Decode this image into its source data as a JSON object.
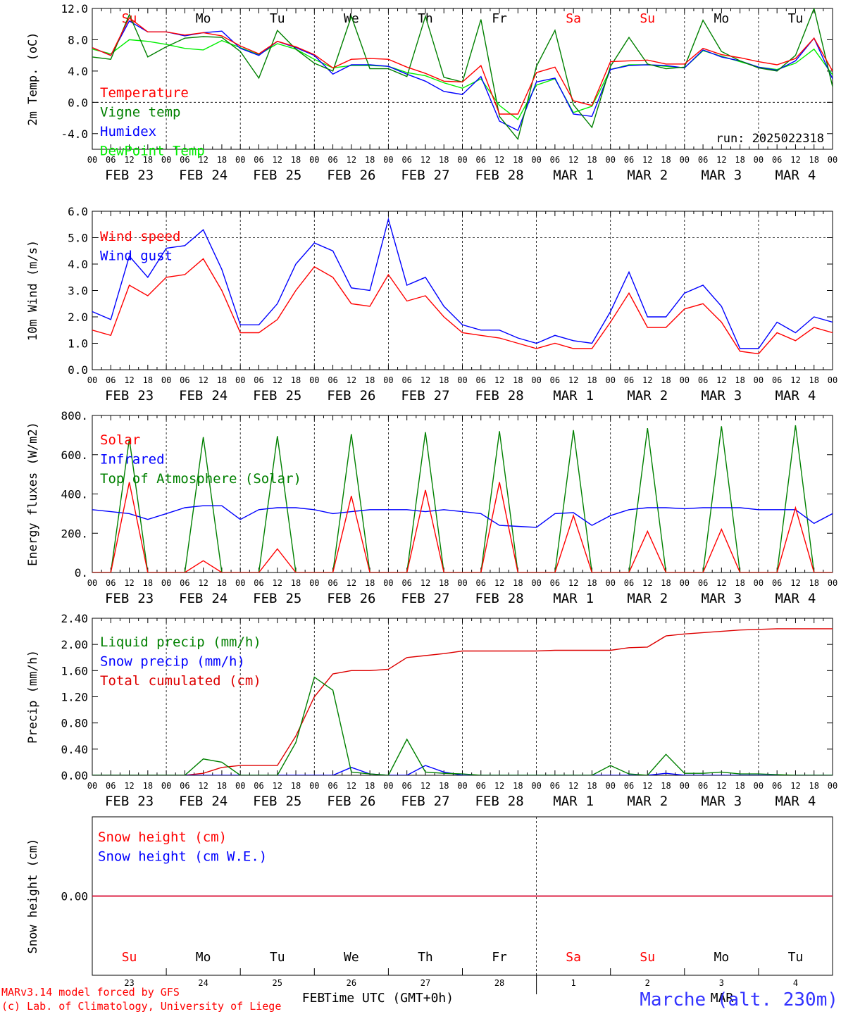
{
  "time_axis": {
    "hour_ticks": [
      "00",
      "06",
      "12",
      "18"
    ],
    "end_tick": "00",
    "dates": [
      [
        "FEB",
        "23"
      ],
      [
        "FEB",
        "24"
      ],
      [
        "FEB",
        "25"
      ],
      [
        "FEB",
        "26"
      ],
      [
        "FEB",
        "27"
      ],
      [
        "FEB",
        "28"
      ],
      [
        "MAR",
        "1"
      ],
      [
        "MAR",
        "2"
      ],
      [
        "MAR",
        "3"
      ],
      [
        "MAR",
        "4"
      ]
    ],
    "weekdays": [
      "Su",
      "Mo",
      "Tu",
      "We",
      "Th",
      "Fr",
      "Sa",
      "Su",
      "Mo",
      "Tu"
    ],
    "weekend_color": "#ff0000",
    "weekday_color": "#000000",
    "day_numbers": [
      "23",
      "24",
      "25",
      "26",
      "27",
      "28",
      "1",
      "2",
      "3",
      "4"
    ],
    "month_label_feb": "FEB",
    "month_label_mar": "MAR",
    "xlabel": "Time UTC (GMT+0h)"
  },
  "footer": {
    "credit_line1": "MARv3.14 model forced by GFS",
    "credit_line2": "(c) Lab. of Climatology, University of Liege",
    "station": "Marche (alt. 230m)",
    "credit_color": "#ff0000",
    "station_color": "#3333ff"
  },
  "chart_data": [
    {
      "id": "temperature",
      "type": "line",
      "ylabel": "2m Temp. (oC)",
      "ylim": [
        -6,
        12
      ],
      "yticks": [
        "12.0",
        "8.0",
        "4.0",
        "0.0",
        "-4.0"
      ],
      "ytick_values": [
        12,
        8,
        4,
        0,
        -4
      ],
      "run_label": "run: 2025022318",
      "x_hours": [
        0,
        6,
        12,
        18,
        24,
        30,
        36,
        42,
        48,
        54,
        60,
        66,
        72,
        78,
        84,
        90,
        96,
        102,
        108,
        114,
        120,
        126,
        132,
        138,
        144,
        150,
        156,
        162,
        168,
        174,
        180,
        186,
        192,
        198,
        204,
        210,
        216,
        222,
        228,
        234,
        240
      ],
      "series": [
        {
          "name": "Temperature",
          "color": "#ff0000",
          "values": [
            7.0,
            6.0,
            10.8,
            9.0,
            9.0,
            8.6,
            8.9,
            8.5,
            7.2,
            6.2,
            7.8,
            7.1,
            6.1,
            4.4,
            5.5,
            5.6,
            5.5,
            4.5,
            3.7,
            2.7,
            2.6,
            4.7,
            -1.5,
            -1.5,
            3.8,
            4.5,
            0.2,
            -0.4,
            5.2,
            5.3,
            5.4,
            4.9,
            4.9,
            6.9,
            6.1,
            5.7,
            5.2,
            4.8,
            5.6,
            8.2,
            4.0
          ]
        },
        {
          "name": "Vigne temp",
          "color": "#008000",
          "values": [
            5.8,
            5.5,
            11.2,
            5.8,
            7.1,
            8.2,
            8.4,
            8.3,
            6.5,
            3.1,
            9.2,
            6.8,
            5.0,
            4.0,
            11.0,
            4.3,
            4.3,
            3.3,
            11.0,
            3.2,
            2.6,
            10.6,
            -1.8,
            -4.7,
            4.6,
            9.2,
            -0.3,
            -3.2,
            4.6,
            8.3,
            4.9,
            4.3,
            4.5,
            10.5,
            6.5,
            5.3,
            4.4,
            4.0,
            6.0,
            12.0,
            2.0
          ]
        },
        {
          "name": "Humidex",
          "color": "#0000ff",
          "values": [
            7.0,
            6.0,
            10.4,
            9.0,
            9.0,
            8.5,
            8.9,
            9.1,
            6.9,
            6.0,
            7.8,
            7.0,
            6.0,
            3.6,
            4.8,
            4.8,
            4.6,
            3.6,
            2.7,
            1.4,
            1.0,
            3.3,
            -2.4,
            -3.6,
            2.6,
            3.1,
            -1.5,
            -1.8,
            4.2,
            4.7,
            4.8,
            4.7,
            4.4,
            6.7,
            5.8,
            5.3,
            4.5,
            4.1,
            5.3,
            8.2,
            3.0
          ]
        },
        {
          "name": "DewPoint Temp",
          "color": "#00ee00",
          "values": [
            6.8,
            6.2,
            8.0,
            7.8,
            7.4,
            6.9,
            6.7,
            7.9,
            7.0,
            6.1,
            7.5,
            6.8,
            5.5,
            4.4,
            4.7,
            4.7,
            4.6,
            3.8,
            3.4,
            2.5,
            1.8,
            3.0,
            -0.4,
            -2.2,
            2.2,
            3.0,
            -1.3,
            -0.5,
            4.2,
            4.8,
            4.8,
            4.6,
            4.4,
            6.6,
            5.9,
            5.2,
            4.5,
            4.2,
            5.0,
            6.8,
            3.5
          ]
        }
      ]
    },
    {
      "id": "wind",
      "type": "line",
      "ylabel": "10m Wind (m/s)",
      "ylim": [
        0,
        6
      ],
      "yticks": [
        "6.0",
        "5.0",
        "4.0",
        "3.0",
        "2.0",
        "1.0",
        "0.0"
      ],
      "ytick_values": [
        6,
        5,
        4,
        3,
        2,
        1,
        0
      ],
      "dashed_ref": 5,
      "x_hours": [
        0,
        6,
        12,
        18,
        24,
        30,
        36,
        42,
        48,
        54,
        60,
        66,
        72,
        78,
        84,
        90,
        96,
        102,
        108,
        114,
        120,
        126,
        132,
        138,
        144,
        150,
        156,
        162,
        168,
        174,
        180,
        186,
        192,
        198,
        204,
        210,
        216,
        222,
        228,
        234,
        240
      ],
      "series": [
        {
          "name": "Wind speed",
          "color": "#ff0000",
          "values": [
            1.5,
            1.3,
            3.2,
            2.8,
            3.5,
            3.6,
            4.2,
            3.0,
            1.4,
            1.4,
            1.9,
            3.0,
            3.9,
            3.5,
            2.5,
            2.4,
            3.6,
            2.6,
            2.8,
            2.0,
            1.4,
            1.3,
            1.2,
            1.0,
            0.8,
            1.0,
            0.8,
            0.8,
            1.8,
            2.9,
            1.6,
            1.6,
            2.3,
            2.5,
            1.8,
            0.7,
            0.6,
            1.4,
            1.1,
            1.6,
            1.4
          ]
        },
        {
          "name": "Wind gust",
          "color": "#0000ff",
          "values": [
            2.2,
            1.9,
            4.3,
            3.5,
            4.6,
            4.7,
            5.3,
            3.8,
            1.7,
            1.7,
            2.5,
            4.0,
            4.8,
            4.5,
            3.1,
            3.0,
            5.7,
            3.2,
            3.5,
            2.4,
            1.7,
            1.5,
            1.5,
            1.2,
            1.0,
            1.3,
            1.1,
            1.0,
            2.2,
            3.7,
            2.0,
            2.0,
            2.9,
            3.2,
            2.4,
            0.8,
            0.8,
            1.8,
            1.4,
            2.0,
            1.8
          ]
        }
      ]
    },
    {
      "id": "energy",
      "type": "line",
      "ylabel": "Energy fluxes (W/m2)",
      "ylim": [
        0,
        800
      ],
      "yticks": [
        "800.",
        "600.",
        "400.",
        "200.",
        "0."
      ],
      "ytick_values": [
        800,
        600,
        400,
        200,
        0
      ],
      "x_hours": [
        0,
        6,
        12,
        18,
        24,
        30,
        36,
        42,
        48,
        54,
        60,
        66,
        72,
        78,
        84,
        90,
        96,
        102,
        108,
        114,
        120,
        126,
        132,
        138,
        144,
        150,
        156,
        162,
        168,
        174,
        180,
        186,
        192,
        198,
        204,
        210,
        216,
        222,
        228,
        234,
        240
      ],
      "series": [
        {
          "name": "Solar",
          "color": "#ff0000",
          "values": [
            0,
            0,
            460,
            0,
            0,
            0,
            60,
            0,
            0,
            0,
            120,
            0,
            0,
            0,
            390,
            0,
            0,
            0,
            420,
            0,
            0,
            0,
            460,
            0,
            0,
            0,
            290,
            0,
            0,
            0,
            210,
            0,
            0,
            0,
            220,
            0,
            0,
            0,
            330,
            0,
            0
          ]
        },
        {
          "name": "Infrared",
          "color": "#0000ff",
          "values": [
            320,
            310,
            300,
            270,
            300,
            330,
            340,
            340,
            270,
            320,
            330,
            330,
            320,
            300,
            310,
            320,
            320,
            320,
            310,
            320,
            310,
            300,
            240,
            235,
            230,
            300,
            305,
            240,
            290,
            320,
            330,
            330,
            325,
            330,
            330,
            330,
            320,
            320,
            320,
            250,
            300
          ]
        },
        {
          "name": "Top of Atmosphere (Solar)",
          "color": "#008000",
          "values": [
            0,
            0,
            680,
            0,
            0,
            0,
            690,
            0,
            0,
            0,
            695,
            0,
            0,
            0,
            705,
            0,
            0,
            0,
            715,
            0,
            0,
            0,
            720,
            0,
            0,
            0,
            725,
            0,
            0,
            0,
            735,
            0,
            0,
            0,
            745,
            0,
            0,
            0,
            750,
            0,
            0
          ]
        }
      ]
    },
    {
      "id": "precip",
      "type": "line",
      "ylabel": "Precip (mm/h)",
      "ylim": [
        0,
        2.4
      ],
      "yticks": [
        "2.40",
        "2.00",
        "1.60",
        "1.20",
        "0.80",
        "0.40",
        "0.00"
      ],
      "ytick_values": [
        2.4,
        2.0,
        1.6,
        1.2,
        0.8,
        0.4,
        0.0
      ],
      "x_hours": [
        0,
        6,
        12,
        18,
        24,
        30,
        36,
        42,
        48,
        54,
        60,
        66,
        72,
        78,
        84,
        90,
        96,
        102,
        108,
        114,
        120,
        126,
        132,
        138,
        144,
        150,
        156,
        162,
        168,
        174,
        180,
        186,
        192,
        198,
        204,
        210,
        216,
        222,
        228,
        234,
        240
      ],
      "series": [
        {
          "name": "Liquid precip (mm/h)",
          "color": "#008000",
          "values": [
            0,
            0,
            0,
            0,
            0,
            0,
            0.25,
            0.2,
            0,
            0,
            0,
            0.5,
            1.5,
            1.3,
            0.05,
            0.02,
            0,
            0.55,
            0.05,
            0.03,
            0.02,
            0,
            0,
            0,
            0,
            0,
            0,
            0,
            0.15,
            0.02,
            0,
            0.32,
            0.03,
            0.03,
            0.05,
            0.02,
            0.02,
            0.01,
            0,
            0,
            0
          ]
        },
        {
          "name": "Snow precip (mm/h)",
          "color": "#0000ff",
          "values": [
            0,
            0,
            0,
            0,
            0,
            0,
            0,
            0,
            0,
            0,
            0,
            0,
            0,
            0,
            0.12,
            0.02,
            0,
            0,
            0.15,
            0.05,
            0,
            0,
            0,
            0,
            0,
            0,
            0,
            0,
            0,
            0,
            0,
            0.03,
            0,
            0,
            0,
            0,
            0,
            0,
            0,
            0,
            0
          ]
        },
        {
          "name": "Total cumulated (cm)",
          "color": "#dd0000",
          "values": [
            0,
            0,
            0,
            0,
            0,
            0,
            0.03,
            0.12,
            0.15,
            0.15,
            0.15,
            0.6,
            1.2,
            1.55,
            1.6,
            1.6,
            1.62,
            1.8,
            1.83,
            1.86,
            1.9,
            1.9,
            1.9,
            1.9,
            1.9,
            1.91,
            1.91,
            1.91,
            1.91,
            1.95,
            1.96,
            2.13,
            2.16,
            2.18,
            2.2,
            2.22,
            2.23,
            2.24,
            2.24,
            2.24,
            2.24
          ]
        }
      ]
    },
    {
      "id": "snow",
      "type": "line",
      "ylabel": "Snow height (cm)",
      "ylim": [
        -1,
        1
      ],
      "yticks": [
        "0.00"
      ],
      "ytick_values": [
        0
      ],
      "x_hours": [
        0,
        240
      ],
      "series": [
        {
          "name": "Snow height (cm)",
          "color": "#ff0000",
          "values": [
            0,
            0
          ]
        },
        {
          "name": "Snow height (cm W.E.)",
          "color": "#0000ff",
          "values": [
            0,
            0
          ]
        }
      ]
    }
  ]
}
